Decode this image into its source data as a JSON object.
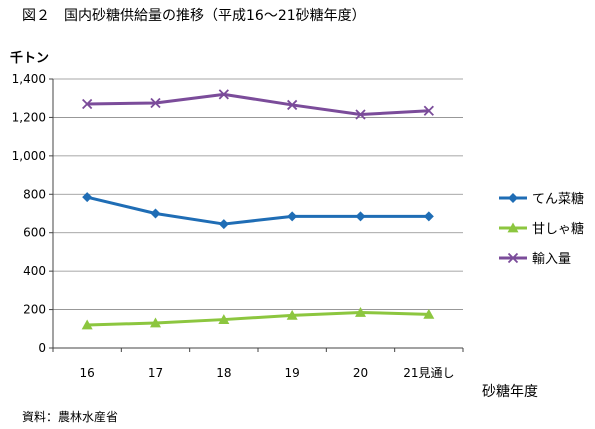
{
  "chart_data": {
    "type": "line",
    "title": "図２　国内砂糖供給量の推移（平成16～21砂糖年度）",
    "ylabel": "千トン",
    "xlabel": "砂糖年度",
    "source": "資料：農林水産省",
    "categories": [
      "16",
      "17",
      "18",
      "19",
      "20",
      "21見通し"
    ],
    "ylim": [
      0,
      1400
    ],
    "yticks": [
      0,
      200,
      400,
      600,
      800,
      1000,
      1200,
      1400
    ],
    "ytick_labels": [
      "0",
      "200",
      "400",
      "600",
      "800",
      "1,000",
      "1,200",
      "1,400"
    ],
    "grid": true,
    "legend_position": "right",
    "series": [
      {
        "name": "てん菜糖",
        "values": [
          785,
          700,
          645,
          685,
          685,
          685
        ],
        "color": "#1F6DB5",
        "marker": "diamond"
      },
      {
        "name": "甘しゃ糖",
        "values": [
          120,
          130,
          148,
          170,
          185,
          175
        ],
        "color": "#8CC63F",
        "marker": "triangle"
      },
      {
        "name": "輸入量",
        "values": [
          1270,
          1275,
          1320,
          1265,
          1215,
          1235
        ],
        "color": "#7B4C9A",
        "marker": "x"
      }
    ]
  }
}
